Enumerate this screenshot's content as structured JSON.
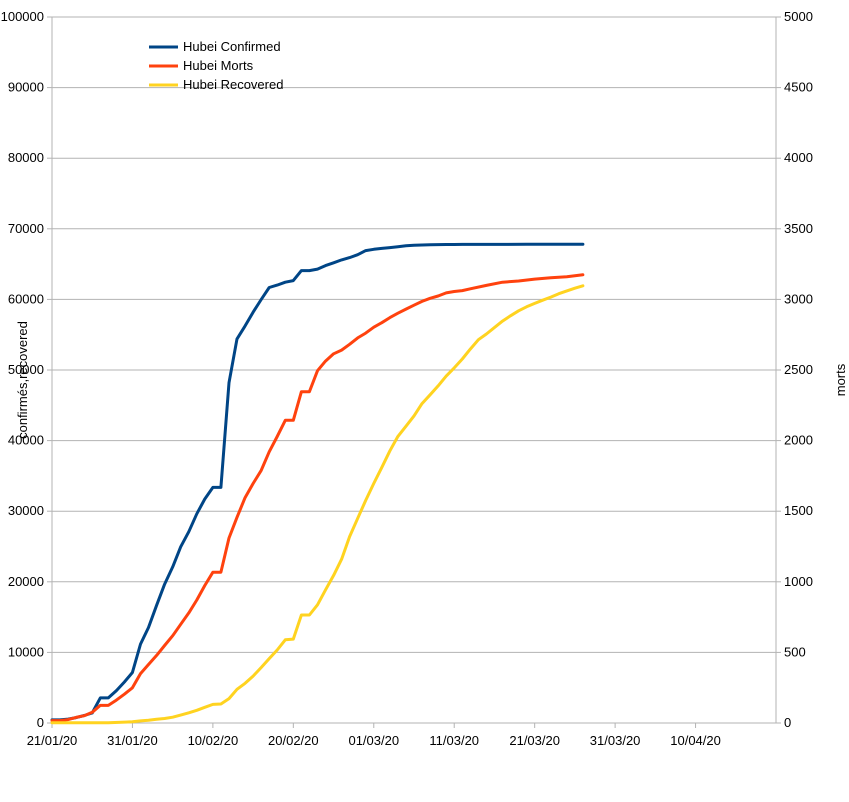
{
  "chart_data": {
    "type": "line",
    "y_left_label": "confirmés,recovered",
    "y_right_label": "morts",
    "y_left_range": [
      0,
      100000
    ],
    "y_right_range": [
      0,
      5000
    ],
    "y_left_ticks": [
      "0",
      "10000",
      "20000",
      "30000",
      "40000",
      "50000",
      "60000",
      "70000",
      "80000",
      "90000",
      "100000"
    ],
    "y_right_ticks": [
      "0",
      "500",
      "1000",
      "1500",
      "2000",
      "2500",
      "3000",
      "3500",
      "4000",
      "4500",
      "5000"
    ],
    "x_range": [
      "21/01/20",
      "20/04/20"
    ],
    "x_ticks": [
      "21/01/20",
      "31/01/20",
      "10/02/20",
      "20/02/20",
      "01/03/20",
      "11/03/20",
      "21/03/20",
      "31/03/20",
      "10/04/20"
    ],
    "grid": "horizontal",
    "legend": "top-left",
    "series": [
      {
        "name": "Hubei Confirmed",
        "axis": "left",
        "color": "#004586",
        "x": [
          "21/01/20",
          "22/01/20",
          "23/01/20",
          "24/01/20",
          "25/01/20",
          "26/01/20",
          "27/01/20",
          "28/01/20",
          "29/01/20",
          "30/01/20",
          "31/01/20",
          "01/02/20",
          "02/02/20",
          "03/02/20",
          "04/02/20",
          "05/02/20",
          "06/02/20",
          "07/02/20",
          "08/02/20",
          "09/02/20",
          "10/02/20",
          "11/02/20",
          "12/02/20",
          "13/02/20",
          "14/02/20",
          "15/02/20",
          "16/02/20",
          "17/02/20",
          "18/02/20",
          "19/02/20",
          "20/02/20",
          "21/02/20",
          "22/02/20",
          "23/02/20",
          "24/02/20",
          "25/02/20",
          "26/02/20",
          "27/02/20",
          "28/02/20",
          "29/02/20",
          "01/03/20",
          "02/03/20",
          "03/03/20",
          "04/03/20",
          "05/03/20",
          "06/03/20",
          "07/03/20",
          "08/03/20",
          "09/03/20",
          "10/03/20",
          "11/03/20",
          "12/03/20",
          "15/03/20",
          "20/03/20",
          "25/03/20",
          "27/03/20"
        ],
        "values": [
          444,
          444,
          549,
          761,
          1058,
          1423,
          3554,
          3554,
          4586,
          5806,
          7153,
          11177,
          13522,
          16678,
          19665,
          22112,
          24953,
          27100,
          29631,
          31728,
          33366,
          33366,
          48206,
          54406,
          56249,
          58182,
          59989,
          61682,
          62031,
          62442,
          62662,
          64084,
          64084,
          64287,
          64786,
          65187,
          65596,
          65914,
          66337,
          66907,
          67103,
          67217,
          67332,
          67466,
          67592,
          67666,
          67707,
          67743,
          67760,
          67773,
          67781,
          67786,
          67794,
          67800,
          67801,
          67801
        ]
      },
      {
        "name": "Hubei Morts",
        "axis": "right",
        "color": "#ff420e",
        "x": [
          "21/01/20",
          "22/01/20",
          "23/01/20",
          "24/01/20",
          "25/01/20",
          "26/01/20",
          "27/01/20",
          "28/01/20",
          "29/01/20",
          "30/01/20",
          "31/01/20",
          "01/02/20",
          "02/02/20",
          "03/02/20",
          "04/02/20",
          "05/02/20",
          "06/02/20",
          "07/02/20",
          "08/02/20",
          "09/02/20",
          "10/02/20",
          "11/02/20",
          "12/02/20",
          "13/02/20",
          "14/02/20",
          "15/02/20",
          "16/02/20",
          "17/02/20",
          "18/02/20",
          "19/02/20",
          "20/02/20",
          "21/02/20",
          "22/02/20",
          "23/02/20",
          "24/02/20",
          "25/02/20",
          "26/02/20",
          "27/02/20",
          "28/02/20",
          "29/02/20",
          "01/03/20",
          "02/03/20",
          "03/03/20",
          "04/03/20",
          "05/03/20",
          "06/03/20",
          "07/03/20",
          "08/03/20",
          "09/03/20",
          "10/03/20",
          "11/03/20",
          "12/03/20",
          "13/03/20",
          "15/03/20",
          "17/03/20",
          "19/03/20",
          "21/03/20",
          "23/03/20",
          "25/03/20",
          "27/03/20"
        ],
        "values": [
          17,
          17,
          24,
          40,
          52,
          76,
          125,
          125,
          162,
          204,
          249,
          350,
          414,
          479,
          549,
          618,
          699,
          780,
          871,
          974,
          1068,
          1068,
          1310,
          1457,
          1596,
          1696,
          1789,
          1921,
          2029,
          2144,
          2144,
          2346,
          2346,
          2495,
          2563,
          2615,
          2641,
          2682,
          2727,
          2761,
          2803,
          2835,
          2871,
          2902,
          2931,
          2959,
          2986,
          3008,
          3024,
          3046,
          3056,
          3062,
          3075,
          3099,
          3122,
          3130,
          3144,
          3153,
          3160,
          3174
        ]
      },
      {
        "name": "Hubei Recovered",
        "axis": "left",
        "color": "#ffd320",
        "x": [
          "21/01/20",
          "22/01/20",
          "25/01/20",
          "27/01/20",
          "28/01/20",
          "31/01/20",
          "01/02/20",
          "02/02/20",
          "03/02/20",
          "04/02/20",
          "05/02/20",
          "06/02/20",
          "07/02/20",
          "08/02/20",
          "09/02/20",
          "10/02/20",
          "11/02/20",
          "12/02/20",
          "13/02/20",
          "14/02/20",
          "15/02/20",
          "16/02/20",
          "17/02/20",
          "18/02/20",
          "19/02/20",
          "20/02/20",
          "21/02/20",
          "22/02/20",
          "23/02/20",
          "24/02/20",
          "25/02/20",
          "26/02/20",
          "27/02/20",
          "28/02/20",
          "29/02/20",
          "01/03/20",
          "02/03/20",
          "03/03/20",
          "04/03/20",
          "05/03/20",
          "06/03/20",
          "07/03/20",
          "08/03/20",
          "09/03/20",
          "10/03/20",
          "11/03/20",
          "12/03/20",
          "13/03/20",
          "14/03/20",
          "15/03/20",
          "16/03/20",
          "17/03/20",
          "18/03/20",
          "19/03/20",
          "20/03/20",
          "21/03/20",
          "22/03/20",
          "23/03/20",
          "24/03/20",
          "25/03/20",
          "26/03/20",
          "27/03/20"
        ],
        "values": [
          28,
          28,
          32,
          44,
          47,
          168,
          295,
          386,
          522,
          633,
          817,
          1115,
          1439,
          1795,
          2222,
          2639,
          2686,
          3459,
          4774,
          5623,
          6639,
          7862,
          9128,
          10337,
          11788,
          11881,
          15299,
          15299,
          16738,
          18854,
          20912,
          23200,
          26403,
          28993,
          31536,
          33934,
          36208,
          38557,
          40592,
          42033,
          43500,
          45235,
          46488,
          47743,
          49134,
          50298,
          51553,
          52960,
          54288,
          55094,
          56003,
          56927,
          57682,
          58382,
          58946,
          59433,
          59882,
          60324,
          60811,
          61201,
          61590,
          61932
        ]
      }
    ]
  }
}
